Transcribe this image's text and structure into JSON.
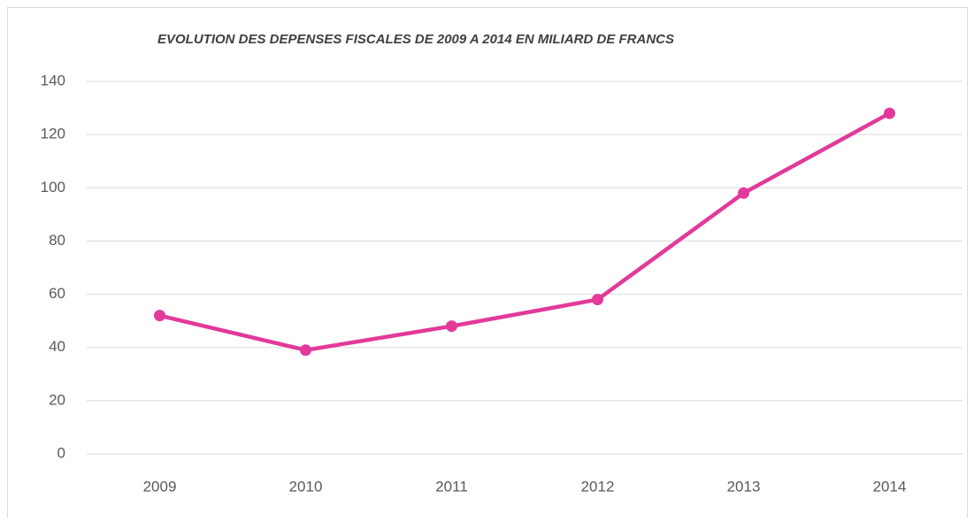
{
  "chart_data": {
    "type": "line",
    "title": "EVOLUTION DES DEPENSES FISCALES DE 2009 A 2014 EN MILIARD DE FRANCS",
    "categories": [
      "2009",
      "2010",
      "2011",
      "2012",
      "2013",
      "2014"
    ],
    "series": [
      {
        "name": "Dépenses fiscales",
        "color": "#e2399a",
        "values": [
          52,
          39,
          48,
          58,
          98,
          128
        ]
      }
    ],
    "ylim": [
      0,
      140
    ],
    "yticks": [
      0,
      20,
      40,
      60,
      80,
      100,
      120,
      140
    ],
    "grid": true,
    "legend": false
  }
}
